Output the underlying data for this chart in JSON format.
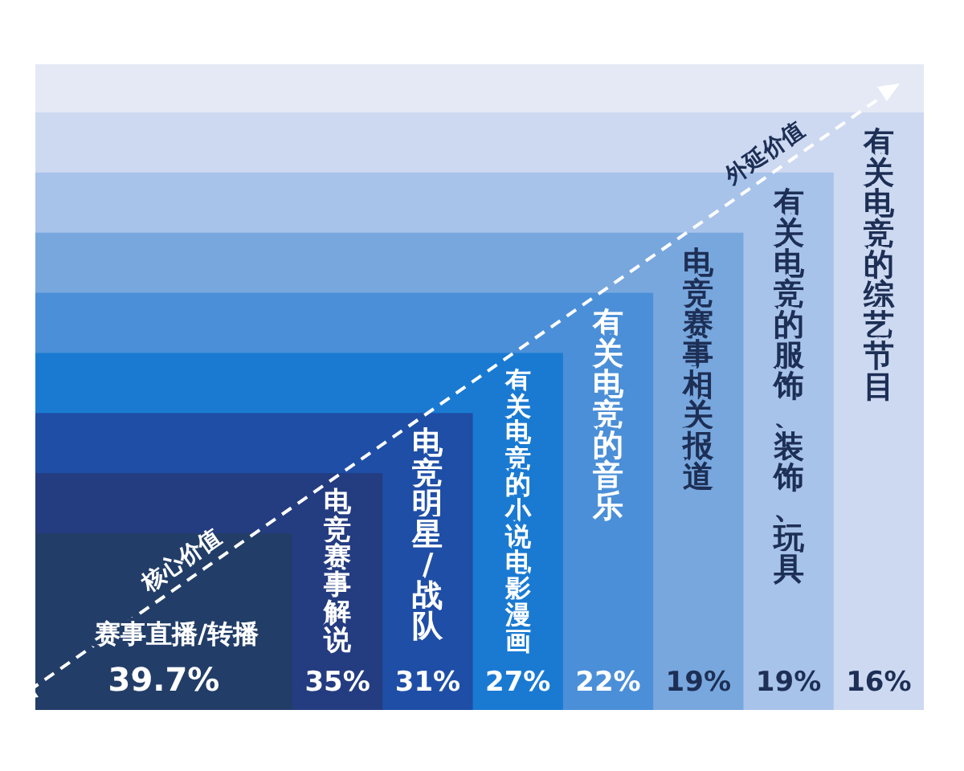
{
  "chart_data": {
    "type": "other",
    "categories": [
      "赛事直播/转播",
      "电竞赛事解说",
      "电竞明星/战队",
      "有关电竞的小说电影漫画",
      "有关电竞的音乐",
      "电竞赛事相关报道",
      "有关电竞的服饰、装饰、玩具",
      "有关电竞的综艺节目"
    ],
    "values": [
      39.7,
      35,
      31,
      27,
      22,
      19,
      19,
      16
    ],
    "value_labels": [
      "39.7%",
      "35%",
      "31%",
      "27%",
      "22%",
      "19%",
      "19%",
      "16%"
    ],
    "colors": [
      "#223e68",
      "#243c80",
      "#1f4ea6",
      "#1a7ad2",
      "#4b8fd8",
      "#78a7de",
      "#a8c3ea",
      "#cdd9f1"
    ],
    "annotations": [
      "核心价值",
      "外延价值"
    ]
  }
}
